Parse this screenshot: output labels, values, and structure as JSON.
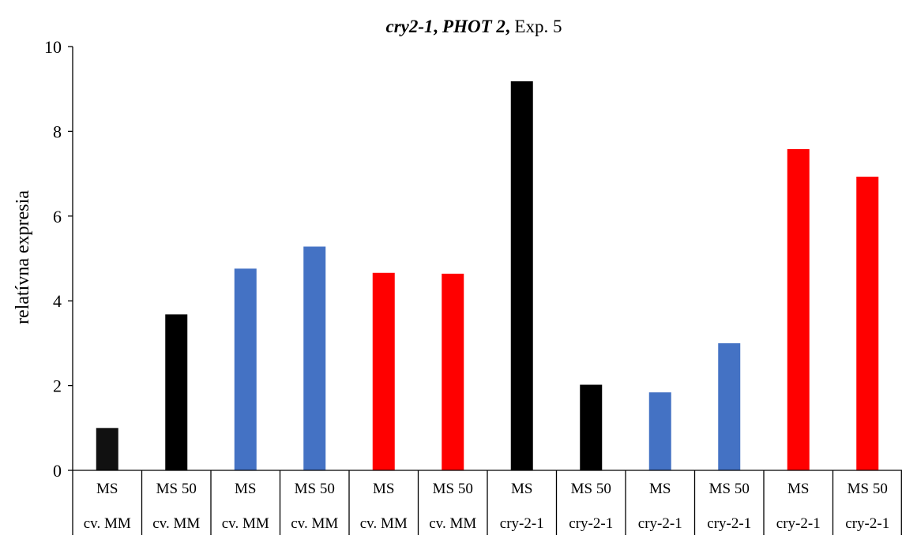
{
  "chart_data": {
    "type": "bar",
    "title_parts": [
      {
        "text": "cry2-1",
        "style": "bold-italic"
      },
      {
        "text": ", ",
        "style": "bold"
      },
      {
        "text": "PHOT 2",
        "style": "bold-italic"
      },
      {
        "text": ",",
        "style": "bold"
      },
      {
        "text": " Exp. 5",
        "style": "normal"
      }
    ],
    "xlabel": "",
    "ylabel": "relatívna expresia",
    "ylim": [
      0,
      10
    ],
    "yticks": [
      0,
      2,
      4,
      6,
      8,
      10
    ],
    "grid": false,
    "legend": "none",
    "categories": [
      {
        "label": "MS",
        "group": "cv. MM"
      },
      {
        "label": "MS 50",
        "group": "cv. MM"
      },
      {
        "label": "MS",
        "group": "cv. MM"
      },
      {
        "label": "MS 50",
        "group": "cv. MM"
      },
      {
        "label": "MS",
        "group": "cv. MM"
      },
      {
        "label": "MS 50",
        "group": "cv. MM"
      },
      {
        "label": "MS",
        "group": "cry-2-1"
      },
      {
        "label": "MS 50",
        "group": "cry-2-1"
      },
      {
        "label": "MS",
        "group": "cry-2-1"
      },
      {
        "label": "MS 50",
        "group": "cry-2-1"
      },
      {
        "label": "MS",
        "group": "cry-2-1"
      },
      {
        "label": "MS 50",
        "group": "cry-2-1"
      }
    ],
    "values": [
      1.0,
      3.68,
      4.76,
      5.28,
      4.66,
      4.64,
      9.18,
      2.02,
      1.84,
      3.0,
      7.58,
      6.93
    ],
    "colors": [
      "#111111",
      "#000000",
      "#4472c4",
      "#4472c4",
      "#ff0000",
      "#ff0000",
      "#000000",
      "#000000",
      "#4472c4",
      "#4472c4",
      "#ff0000",
      "#ff0000"
    ]
  }
}
